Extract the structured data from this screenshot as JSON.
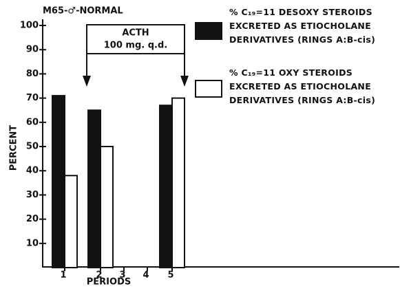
{
  "chart_data": {
    "type": "bar",
    "title": "M65-♂-NORMAL",
    "x_label": "PERIODS",
    "y_label": "PERCENT",
    "categories": [
      "1",
      "2",
      "3",
      "4",
      "5"
    ],
    "series": [
      {
        "name": "% C₁₉=11 DESOXY STEROIDS\nEXCRETED AS ETIOCHOLANE\nDERIVATIVES (RINGS A:B-cis)",
        "color": "#111111",
        "values": [
          71,
          65,
          null,
          null,
          67
        ]
      },
      {
        "name": "% C₁₉=11 OXY STEROIDS\nEXCRETED AS ETIOCHOLANE\nDERIVATIVES (RINGS A:B-cis)",
        "color": "#ffffff",
        "values": [
          38,
          50,
          null,
          null,
          70
        ]
      }
    ],
    "annotation": {
      "lines": [
        "ACTH",
        "100 mg. q.d."
      ]
    },
    "ylim": [
      0,
      100
    ],
    "yticks": [
      10,
      20,
      30,
      40,
      50,
      60,
      70,
      80,
      90,
      100
    ]
  }
}
